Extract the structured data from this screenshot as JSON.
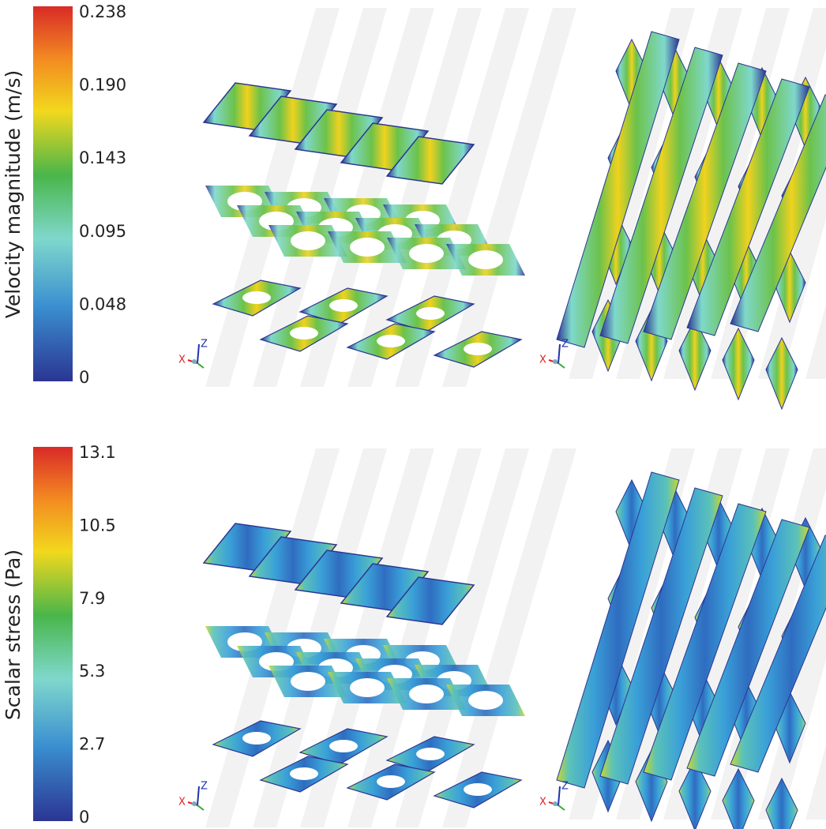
{
  "colorbars": [
    {
      "label": "Velocity magnitude (m/s)",
      "ticks": [
        "0.238",
        "0.190",
        "0.143",
        "0.095",
        "0.048",
        "0"
      ]
    },
    {
      "label": "Scalar stress (Pa)",
      "ticks": [
        "13.1",
        "10.5",
        "7.9",
        "5.3",
        "2.7",
        "0"
      ]
    }
  ],
  "axis_triad": {
    "x": "X",
    "z": "Z"
  }
}
